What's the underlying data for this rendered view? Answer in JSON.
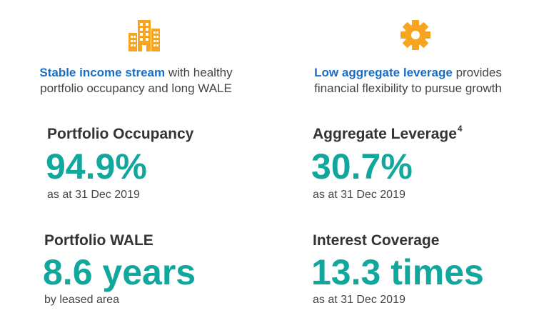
{
  "colors": {
    "accent_blue": "#1a6fc4",
    "value_teal": "#12a79d",
    "icon_orange": "#f7a520",
    "text": "#444444"
  },
  "left": {
    "icon": "buildings-icon",
    "intro_highlight": "Stable income stream",
    "intro_rest_line1": " with healthy",
    "intro_line2": "portfolio occupancy and long WALE",
    "metrics": [
      {
        "title": "Portfolio Occupancy",
        "value": "94.9%",
        "note": "as at 31 Dec 2019"
      },
      {
        "title": "Portfolio WALE",
        "value": "8.6 years",
        "note": "by leased area"
      }
    ]
  },
  "right": {
    "icon": "gear-icon",
    "intro_highlight": "Low aggregate leverage",
    "intro_rest_line1": " provides",
    "intro_line2": "financial flexibility to pursue growth",
    "metrics": [
      {
        "title": "Aggregate Leverage",
        "footnote": "4",
        "value": "30.7%",
        "note": "as at 31 Dec 2019"
      },
      {
        "title": "Interest Coverage",
        "value": "13.3 times",
        "note": "as at 31 Dec 2019"
      }
    ]
  }
}
